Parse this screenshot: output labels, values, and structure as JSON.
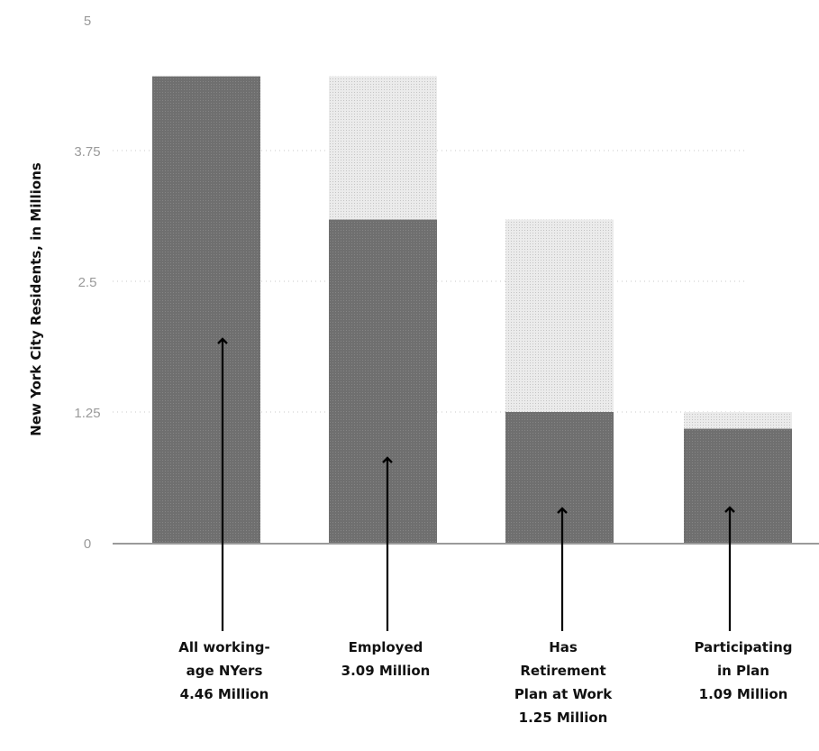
{
  "chart_data": {
    "type": "bar",
    "ylabel": "New York City Residents, in Millions",
    "ylim": [
      0,
      5
    ],
    "yticks": [
      "5",
      "3.75",
      "2.5",
      "1.25",
      "0"
    ],
    "ytick_values": [
      5,
      3.75,
      2.5,
      1.25,
      0
    ],
    "grid": true,
    "categories": [
      {
        "value": 4.46,
        "background": null,
        "label_lines": [
          "All working-",
          "age NYers",
          "4.46 Million"
        ]
      },
      {
        "value": 3.09,
        "background": 4.46,
        "label_lines": [
          "Employed",
          "3.09 Million"
        ]
      },
      {
        "value": 1.25,
        "background": 3.09,
        "label_lines": [
          "Has",
          "Retirement",
          "Plan at Work",
          "1.25 Million"
        ]
      },
      {
        "value": 1.09,
        "background": 1.25,
        "label_lines": [
          "Participating",
          "in Plan",
          "1.09 Million"
        ]
      }
    ],
    "colors": {
      "bar": "#707070",
      "background_bar": "#e2e2e2",
      "grid": "#c8c8c8",
      "axis": "#9a9a9a",
      "arrow": "#000000"
    }
  }
}
